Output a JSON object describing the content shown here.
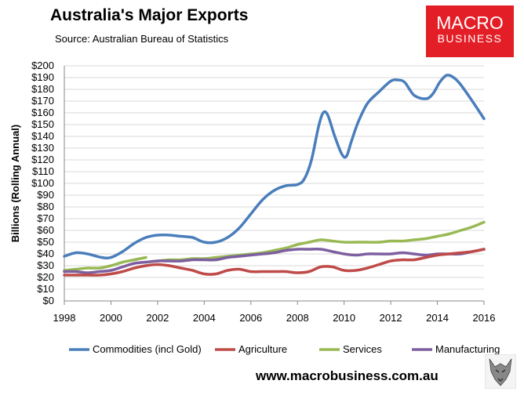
{
  "header": {
    "title": "Australia's Major Exports",
    "source": "Source: Australian Bureau of Statistics"
  },
  "logo": {
    "line1": "MACRO",
    "line2": "BUSINESS",
    "color": "#e41e26"
  },
  "footer": {
    "url": "www.macrobusiness.com.au"
  },
  "chart_data": {
    "type": "line",
    "title": "Australia's Major Exports",
    "ylabel": "Billions (Rolling Annual)",
    "xlabel": "",
    "ylim": [
      0,
      200
    ],
    "xlim": [
      1998,
      2016
    ],
    "yticks": [
      "$0",
      "$10",
      "$20",
      "$30",
      "$40",
      "$50",
      "$60",
      "$70",
      "$80",
      "$90",
      "$100",
      "$110",
      "$120",
      "$130",
      "$140",
      "$150",
      "$160",
      "$170",
      "$180",
      "$190",
      "$200"
    ],
    "xticks": [
      "1998",
      "2000",
      "2002",
      "2004",
      "2006",
      "2008",
      "2010",
      "2012",
      "2014",
      "2016"
    ],
    "grid": true,
    "legend_position": "bottom",
    "series": [
      {
        "name": "Commodities (incl Gold)",
        "color": "#4a7ebb",
        "x": [
          1998,
          1998.5,
          1999,
          1999.6,
          2000,
          2000.5,
          2001,
          2001.5,
          2002,
          2002.5,
          2003,
          2003.5,
          2004,
          2004.5,
          2005,
          2005.5,
          2006,
          2006.5,
          2007,
          2007.5,
          2008,
          2008.3,
          2008.6,
          2008.9,
          2009.1,
          2009.3,
          2009.6,
          2009.9,
          2010.1,
          2010.3,
          2010.6,
          2011,
          2011.5,
          2012,
          2012.3,
          2012.6,
          2013,
          2013.5,
          2013.8,
          2014.1,
          2014.4,
          2014.7,
          2015,
          2015.5,
          2016
        ],
        "values": [
          38,
          41,
          40,
          37,
          37,
          42,
          49,
          54,
          56,
          56,
          55,
          54,
          50,
          50,
          54,
          62,
          74,
          86,
          94,
          98,
          99,
          104,
          120,
          148,
          160,
          158,
          140,
          125,
          123,
          135,
          152,
          168,
          178,
          187,
          188,
          186,
          175,
          172,
          176,
          186,
          192,
          190,
          184,
          170,
          155
        ]
      },
      {
        "name": "Agriculture",
        "color": "#be4b48",
        "x": [
          1998,
          1998.5,
          1999,
          1999.5,
          2000,
          2000.5,
          2001,
          2001.5,
          2002,
          2002.5,
          2003,
          2003.5,
          2004,
          2004.5,
          2005,
          2005.5,
          2006,
          2006.5,
          2007,
          2007.5,
          2008,
          2008.5,
          2009,
          2009.5,
          2010,
          2010.5,
          2011,
          2011.5,
          2012,
          2012.5,
          2013,
          2013.5,
          2014,
          2014.5,
          2015,
          2015.5,
          2016
        ],
        "values": [
          22,
          22,
          22,
          22,
          23,
          25,
          28,
          30,
          31,
          30,
          28,
          26,
          23,
          23,
          26,
          27,
          25,
          25,
          25,
          25,
          24,
          25,
          29,
          29,
          26,
          26,
          28,
          31,
          34,
          35,
          35,
          37,
          39,
          40,
          41,
          42,
          44
        ]
      },
      {
        "name": "Services",
        "color": "#98b954",
        "x": [
          1998,
          1998.5,
          1999,
          1999.5,
          2000,
          2000.5,
          2001,
          2001.5
        ],
        "values": [
          26,
          27,
          28,
          28,
          30,
          33,
          35,
          37
        ]
      },
      {
        "name": "Services",
        "color": "#98b954",
        "x": [
          2001.5,
          2002,
          2002.5,
          2003,
          2003.5,
          2004,
          2004.5,
          2005,
          2005.5,
          2006,
          2006.5,
          2007,
          2007.5,
          2008,
          2008.5,
          2009,
          2009.5,
          2010,
          2010.5,
          2011,
          2011.5,
          2012,
          2012.5,
          2013,
          2013.5,
          2014,
          2014.5,
          2015,
          2015.5,
          2016
        ],
        "values": [
          33,
          34,
          35,
          35,
          36,
          36,
          37,
          38,
          39,
          40,
          41,
          43,
          45,
          48,
          50,
          52,
          51,
          50,
          50,
          50,
          50,
          51,
          51,
          52,
          53,
          55,
          57,
          60,
          63,
          67
        ]
      },
      {
        "name": "Manufacturing",
        "color": "#7d5fa0",
        "x": [
          1998,
          1998.5,
          1999,
          1999.5,
          2000,
          2000.5,
          2001,
          2001.5,
          2002,
          2002.5,
          2003,
          2003.5,
          2004,
          2004.5,
          2005,
          2005.5,
          2006,
          2006.5,
          2007,
          2007.5,
          2008,
          2008.5,
          2009,
          2009.5,
          2010,
          2010.5,
          2011,
          2011.5,
          2012,
          2012.5,
          2013,
          2013.5,
          2014,
          2014.5,
          2015,
          2015.5,
          2016
        ],
        "values": [
          25,
          25,
          24,
          25,
          26,
          29,
          32,
          33,
          34,
          34,
          34,
          35,
          35,
          35,
          37,
          38,
          39,
          40,
          41,
          43,
          44,
          44,
          44,
          42,
          40,
          39,
          40,
          40,
          40,
          41,
          40,
          39,
          40,
          40,
          40,
          42,
          44
        ]
      }
    ],
    "legend": [
      "Commodities (incl Gold)",
      "Agriculture",
      "Services",
      "Manufacturing"
    ]
  }
}
